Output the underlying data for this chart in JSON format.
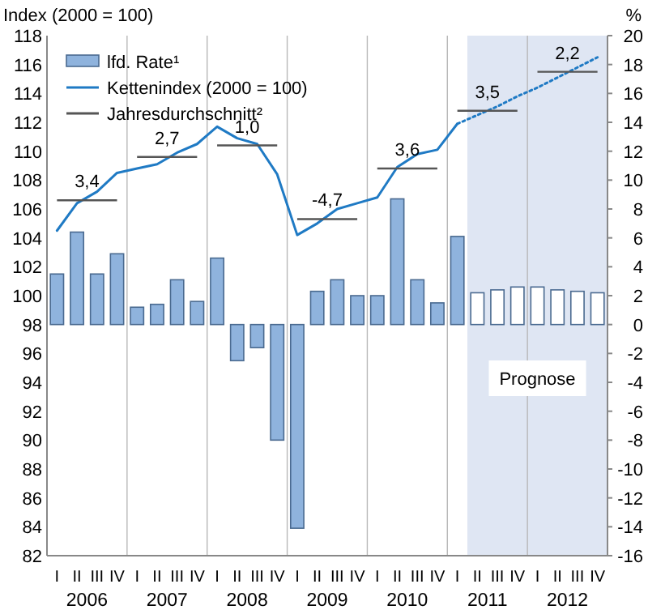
{
  "chart_data": {
    "type": "bar",
    "ylabel": "Index (2000 = 100)",
    "y2label": "%",
    "categories": [
      "I",
      "II",
      "III",
      "IV",
      "I",
      "II",
      "III",
      "IV",
      "I",
      "II",
      "III",
      "IV",
      "I",
      "II",
      "III",
      "IV",
      "I",
      "II",
      "III",
      "IV",
      "I",
      "II",
      "III",
      "IV",
      "I",
      "II",
      "III",
      "IV"
    ],
    "ylim": [
      82,
      118
    ],
    "yticks": [
      82,
      84,
      86,
      88,
      90,
      92,
      94,
      96,
      98,
      100,
      102,
      104,
      106,
      108,
      110,
      112,
      114,
      116,
      118
    ],
    "y2lim": [
      -16,
      20
    ],
    "y2ticks": [
      -16,
      -14,
      -12,
      -10,
      -8,
      -6,
      -4,
      -2,
      0,
      2,
      4,
      6,
      8,
      10,
      12,
      14,
      16,
      18,
      20
    ],
    "legend": "top left",
    "series": [
      {
        "name": "lfd. Rate¹",
        "axis": "y2",
        "color": "#8fb3dd",
        "colors": [
          "#8fb3dd",
          "#8fb3dd",
          "#8fb3dd",
          "#8fb3dd",
          "#8fb3dd",
          "#8fb3dd",
          "#8fb3dd",
          "#8fb3dd",
          "#8fb3dd",
          "#8fb3dd",
          "#8fb3dd",
          "#8fb3dd",
          "#8fb3dd",
          "#8fb3dd",
          "#8fb3dd",
          "#8fb3dd",
          "#8fb3dd",
          "#8fb3dd",
          "#8fb3dd",
          "#8fb3dd",
          "#8fb3dd",
          "#ffffff",
          "#ffffff",
          "#ffffff",
          "#ffffff",
          "#ffffff",
          "#ffffff",
          "#ffffff"
        ],
        "values": [
          3.5,
          6.4,
          3.5,
          4.9,
          1.2,
          1.4,
          3.1,
          1.6,
          4.6,
          -2.5,
          -1.6,
          -8,
          -14.1,
          2.3,
          3.1,
          2.0,
          2.0,
          8.7,
          3.1,
          1.5,
          6.1,
          2.2,
          2.4,
          2.6,
          2.6,
          2.4,
          2.3,
          2.2
        ]
      },
      {
        "name": "Kettenindex (2000 = 100)",
        "type": "line",
        "color": "#1f7ac4",
        "line_style": "solid",
        "values": [
          104.5,
          106.4,
          107.2,
          108.5,
          108.8,
          109.1,
          109.9,
          110.5,
          111.7,
          110.9,
          110.5,
          108.4,
          104.2,
          105.0,
          106.0,
          106.4,
          106.8,
          108.9,
          109.8,
          110.1,
          111.9,
          null,
          null,
          null,
          null,
          null,
          null,
          null
        ]
      },
      {
        "type": "line",
        "color": "#1f7ac4",
        "line_style": "dotted",
        "values": [
          null,
          null,
          null,
          null,
          null,
          null,
          null,
          null,
          null,
          null,
          null,
          null,
          null,
          null,
          null,
          null,
          null,
          null,
          null,
          null,
          111.9,
          112.5,
          113.1,
          113.8,
          114.4,
          115.1,
          115.8,
          116.5
        ]
      },
      {
        "name": "Jahresdurchschnitt²",
        "type": "step",
        "color": "#555555",
        "line_style": "solid",
        "values": [
          106.6,
          106.6,
          106.6,
          106.6,
          109.6,
          109.6,
          109.6,
          109.6,
          110.4,
          110.4,
          110.4,
          110.4,
          105.3,
          105.3,
          105.3,
          105.3,
          108.8,
          108.8,
          108.8,
          108.8,
          112.8,
          112.8,
          112.8,
          112.8,
          115.5,
          115.5,
          115.5,
          115.5
        ]
      }
    ],
    "annotations": [
      "2006",
      "2007",
      "2008",
      "2009",
      "2010",
      "2011",
      "2012",
      "3,4",
      "2,7",
      "1,0",
      "-4,7",
      "3,6",
      "3,5",
      "2,2",
      "Prognose"
    ]
  }
}
